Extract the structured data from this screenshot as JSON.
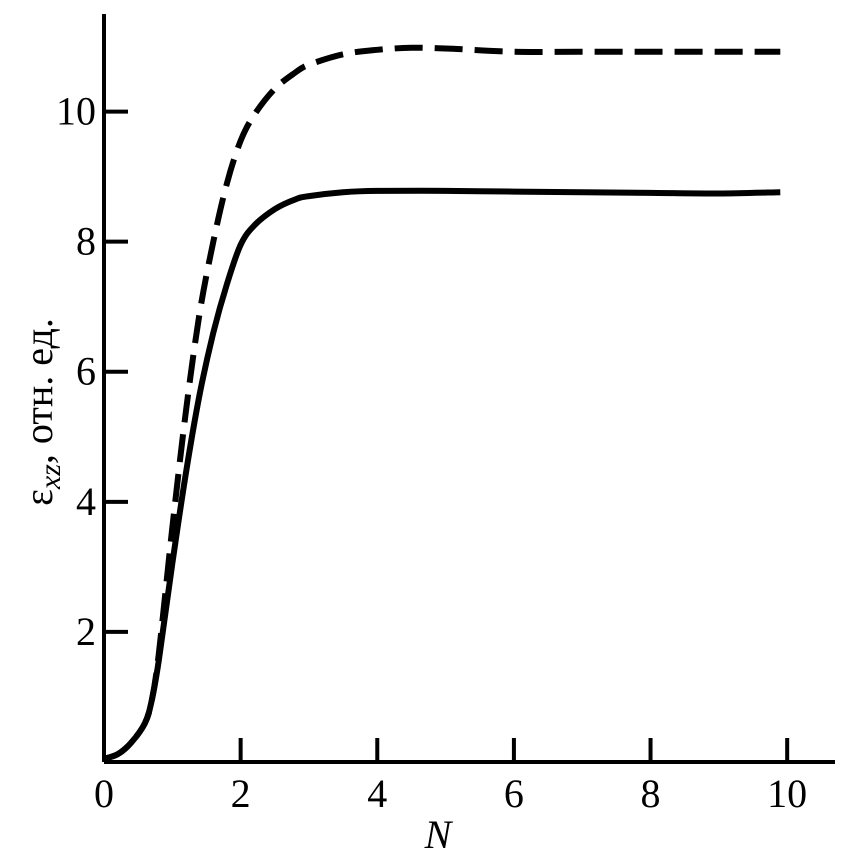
{
  "chart_data": {
    "type": "line",
    "title": "",
    "xlabel": "N",
    "ylabel": {
      "symbol": "ε",
      "subscript": "xz",
      "rest": ", отн. ед."
    },
    "xlim": [
      0,
      10.7
    ],
    "ylim": [
      0,
      11.5
    ],
    "x_ticks": [
      0,
      2,
      4,
      6,
      8,
      10
    ],
    "x_tick_labels": [
      "0",
      "2",
      "4",
      "6",
      "8",
      "10"
    ],
    "y_ticks": [
      2,
      4,
      6,
      8,
      10
    ],
    "y_tick_labels": [
      "2",
      "4",
      "6",
      "8",
      "10"
    ],
    "grid": false,
    "legend": "none",
    "series": [
      {
        "style": "solid",
        "color": "#000000",
        "x": [
          0,
          0.2,
          0.4,
          0.6,
          0.7,
          0.8,
          1.0,
          1.2,
          1.4,
          1.6,
          1.8,
          2.0,
          2.2,
          2.5,
          2.8,
          3.0,
          3.5,
          4.0,
          5.0,
          6.0,
          7.0,
          8.0,
          9.0,
          9.9
        ],
        "y": [
          0.05,
          0.12,
          0.3,
          0.6,
          0.95,
          1.55,
          3.05,
          4.45,
          5.65,
          6.6,
          7.35,
          7.95,
          8.25,
          8.5,
          8.65,
          8.7,
          8.76,
          8.78,
          8.78,
          8.77,
          8.76,
          8.75,
          8.74,
          8.76
        ]
      },
      {
        "style": "dashed",
        "color": "#000000",
        "x": [
          0,
          0.2,
          0.4,
          0.6,
          0.7,
          0.8,
          1.0,
          1.2,
          1.4,
          1.6,
          1.8,
          2.0,
          2.2,
          2.5,
          2.8,
          3.0,
          3.5,
          4.0,
          4.5,
          5.0,
          6.0,
          7.0,
          8.0,
          9.0,
          9.9
        ],
        "y": [
          0.05,
          0.12,
          0.3,
          0.6,
          0.95,
          1.65,
          3.6,
          5.4,
          6.9,
          8.0,
          8.9,
          9.55,
          9.95,
          10.35,
          10.6,
          10.72,
          10.88,
          10.95,
          10.98,
          10.97,
          10.92,
          10.92,
          10.92,
          10.92,
          10.92
        ]
      }
    ]
  }
}
